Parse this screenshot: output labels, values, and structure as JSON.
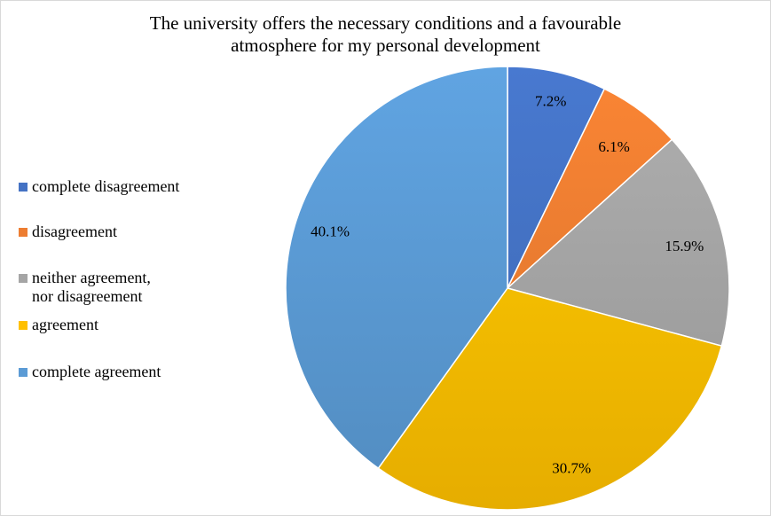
{
  "chart_data": {
    "type": "pie",
    "title_lines": [
      "The university offers the necessary conditions and a favourable",
      "atmosphere for my personal development"
    ],
    "legend_position": "left",
    "slices": [
      {
        "label": "complete disagreement",
        "value": 7.2,
        "display": "7.2%",
        "color": "#4472c4"
      },
      {
        "label": "disagreement",
        "value": 6.1,
        "display": "6.1%",
        "color": "#ed7d31"
      },
      {
        "label": "neither agreement,\nnor disagreement",
        "value": 15.9,
        "display": "15.9%",
        "color": "#a5a5a5"
      },
      {
        "label": "agreement",
        "value": 30.7,
        "display": "30.7%",
        "color": "#ffc000"
      },
      {
        "label": "complete agreement",
        "value": 40.1,
        "display": "40.1%",
        "color": "#5b9bd5"
      }
    ]
  }
}
